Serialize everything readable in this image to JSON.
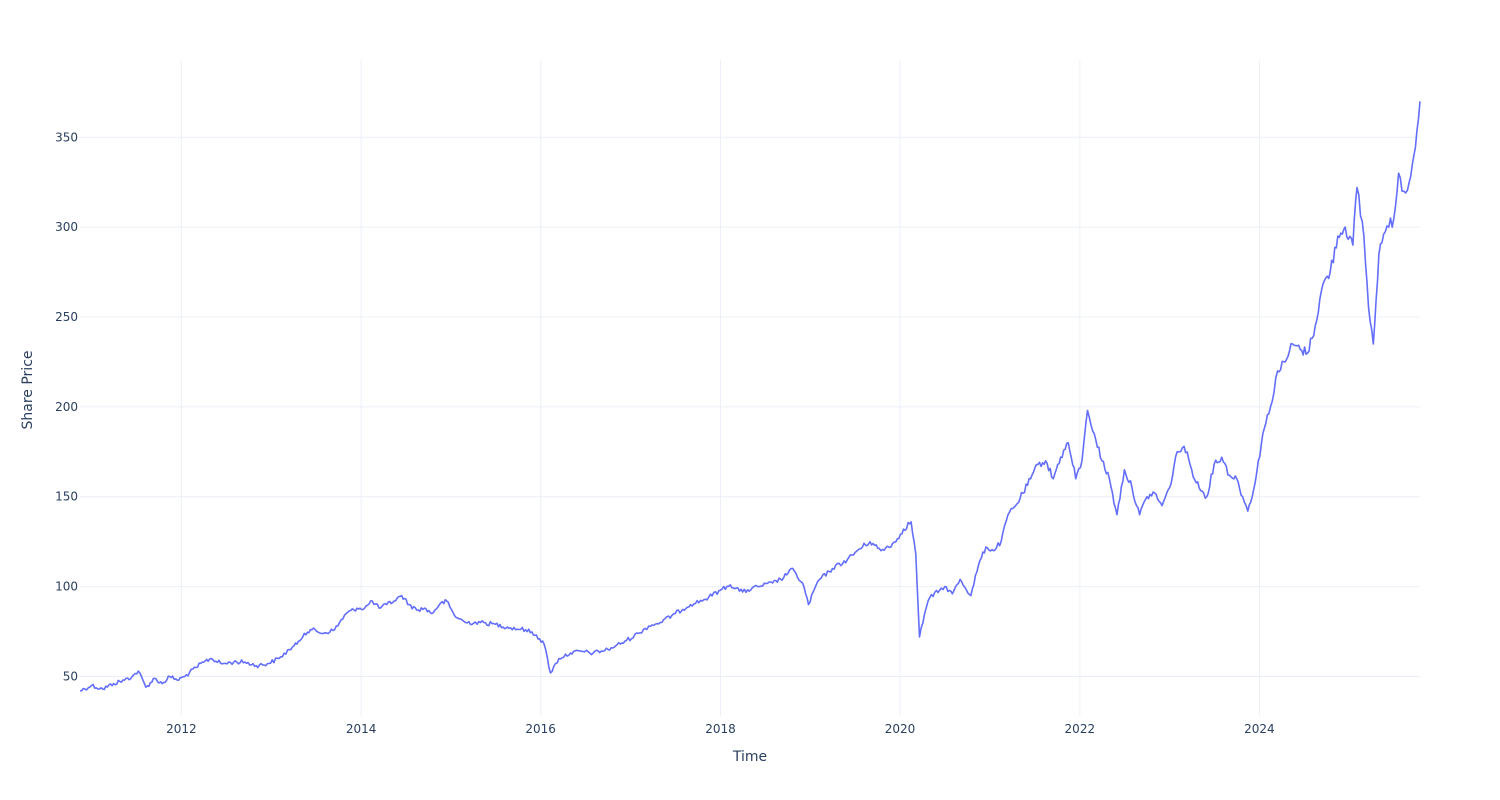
{
  "chart_data": {
    "type": "line",
    "title": "",
    "xlabel": "Time",
    "ylabel": "Share Price",
    "x_axis_type": "date",
    "xlim": [
      "2010-11-15",
      "2025-10-15"
    ],
    "ylim": [
      28,
      393
    ],
    "x_ticks": [
      "2012-01-01",
      "2014-01-01",
      "2016-01-01",
      "2018-01-01",
      "2020-01-01",
      "2022-01-01",
      "2024-01-01"
    ],
    "x_tick_labels": [
      "2012",
      "2014",
      "2016",
      "2018",
      "2020",
      "2022",
      "2024"
    ],
    "y_ticks": [
      50,
      100,
      150,
      200,
      250,
      300,
      350
    ],
    "y_tick_labels": [
      "50",
      "100",
      "150",
      "200",
      "250",
      "300",
      "350"
    ],
    "grid": true,
    "line_color": "#636efa",
    "series": [
      {
        "x": [
          "2010-11-15",
          "2011-01-01",
          "2011-02-15",
          "2011-04-01",
          "2011-05-15",
          "2011-06-15",
          "2011-07-10",
          "2011-08-10",
          "2011-09-15",
          "2011-10-15",
          "2011-11-15",
          "2011-12-15",
          "2012-01-15",
          "2012-03-01",
          "2012-04-01",
          "2012-05-01",
          "2012-06-15",
          "2012-08-01",
          "2012-09-15",
          "2012-11-01",
          "2012-12-15",
          "2013-02-01",
          "2013-03-15",
          "2013-04-15",
          "2013-05-15",
          "2013-06-15",
          "2013-08-01",
          "2013-09-15",
          "2013-11-01",
          "2013-12-15",
          "2014-01-15",
          "2014-02-15",
          "2014-03-15",
          "2014-04-15",
          "2014-05-15",
          "2014-06-15",
          "2014-07-15",
          "2014-08-15",
          "2014-09-15",
          "2014-10-15",
          "2014-11-15",
          "2014-12-15",
          "2015-01-15",
          "2015-03-01",
          "2015-05-01",
          "2015-07-01",
          "2015-09-01",
          "2015-11-01",
          "2015-12-15",
          "2016-01-15",
          "2016-02-10",
          "2016-03-15",
          "2016-05-01",
          "2016-06-15",
          "2016-08-01",
          "2016-10-01",
          "2016-11-01",
          "2016-12-15",
          "2017-02-01",
          "2017-03-15",
          "2017-05-01",
          "2017-07-01",
          "2017-09-01",
          "2017-11-01",
          "2018-01-01",
          "2018-02-10",
          "2018-04-01",
          "2018-06-01",
          "2018-08-01",
          "2018-09-15",
          "2018-10-15",
          "2018-12-01",
          "2018-12-25",
          "2019-02-01",
          "2019-04-01",
          "2019-06-01",
          "2019-07-20",
          "2019-09-01",
          "2019-10-15",
          "2019-12-15",
          "2020-01-15",
          "2020-02-15",
          "2020-03-05",
          "2020-03-20",
          "2020-04-10",
          "2020-05-01",
          "2020-06-10",
          "2020-07-01",
          "2020-08-01",
          "2020-09-01",
          "2020-10-15",
          "2020-11-15",
          "2020-12-15",
          "2021-01-15",
          "2021-02-15",
          "2021-03-15",
          "2021-04-15",
          "2021-05-15",
          "2021-06-15",
          "2021-07-15",
          "2021-08-15",
          "2021-09-15",
          "2021-10-15",
          "2021-11-15",
          "2021-12-15",
          "2022-01-10",
          "2022-02-01",
          "2022-03-01",
          "2022-04-01",
          "2022-05-01",
          "2022-06-01",
          "2022-07-01",
          "2022-08-01",
          "2022-09-01",
          "2022-10-01",
          "2022-11-01",
          "2022-12-01",
          "2023-01-01",
          "2023-02-01",
          "2023-03-01",
          "2023-04-01",
          "2023-05-01",
          "2023-06-01",
          "2023-07-01",
          "2023-08-01",
          "2023-09-01",
          "2023-10-01",
          "2023-10-25",
          "2023-11-15",
          "2023-12-15",
          "2024-01-15",
          "2024-02-15",
          "2024-03-15",
          "2024-04-15",
          "2024-05-15",
          "2024-06-15",
          "2024-07-15",
          "2024-08-15",
          "2024-09-15",
          "2024-10-15",
          "2024-11-15",
          "2024-12-15",
          "2025-01-15",
          "2025-02-01",
          "2025-03-01",
          "2025-03-20",
          "2025-04-08",
          "2025-05-01",
          "2025-05-20",
          "2025-06-10",
          "2025-07-01",
          "2025-07-20",
          "2025-08-10",
          "2025-09-01",
          "2025-09-20",
          "2025-10-15"
        ],
        "y": [
          42,
          45,
          43,
          46,
          48,
          50,
          53,
          44,
          49,
          46,
          50,
          48,
          50,
          55,
          58,
          60,
          57,
          58,
          58,
          56,
          57,
          60,
          65,
          68,
          74,
          76,
          74,
          76,
          85,
          88,
          88,
          92,
          88,
          90,
          92,
          95,
          90,
          87,
          88,
          85,
          90,
          92,
          84,
          80,
          80,
          79,
          77,
          76,
          73,
          68,
          52,
          60,
          63,
          64,
          63,
          65,
          67,
          70,
          74,
          78,
          80,
          85,
          90,
          93,
          98,
          101,
          97,
          100,
          102,
          105,
          110,
          102,
          90,
          103,
          110,
          115,
          121,
          125,
          120,
          125,
          132,
          136,
          118,
          72,
          85,
          94,
          98,
          100,
          96,
          104,
          95,
          112,
          122,
          120,
          125,
          140,
          145,
          152,
          160,
          168,
          170,
          160,
          172,
          180,
          160,
          170,
          198,
          185,
          170,
          160,
          140,
          165,
          155,
          140,
          150,
          152,
          145,
          155,
          175,
          178,
          165,
          155,
          150,
          168,
          172,
          162,
          160,
          150,
          142,
          158,
          185,
          200,
          220,
          225,
          235,
          232,
          230,
          245,
          268,
          275,
          295,
          300,
          290,
          322,
          295,
          255,
          235,
          285,
          296,
          300,
          305,
          330,
          320,
          325,
          340,
          370
        ]
      }
    ]
  }
}
